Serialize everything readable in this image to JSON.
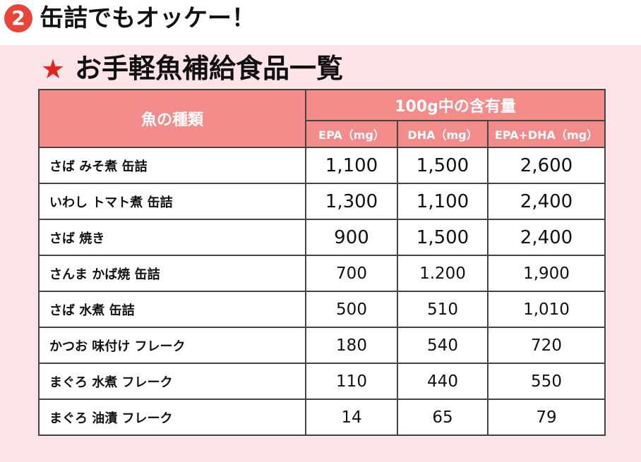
{
  "header": {
    "badge": "2",
    "title": "缶詰でもオッケー！"
  },
  "panel": {
    "star": "★",
    "title": "お手軽魚補給食品一覧"
  },
  "table": {
    "fish_header": "魚の種類",
    "group_header": "100g中の含有量",
    "sub_headers": [
      "EPA（mg）",
      "DHA（mg）",
      "EPA+DHA（mg）"
    ],
    "rows": [
      {
        "name": "さば みそ煮 缶詰",
        "epa": "1,100",
        "dha": "1,500",
        "total": "2,600"
      },
      {
        "name": "いわし トマト煮 缶詰",
        "epa": "1,300",
        "dha": "1,100",
        "total": "2,400"
      },
      {
        "name": "さば 焼き",
        "epa": "900",
        "dha": "1,500",
        "total": "2,400"
      },
      {
        "name": "さんま かば焼 缶詰",
        "epa": "700",
        "dha": "1.200",
        "total": "1,900"
      },
      {
        "name": "さば 水煮 缶詰",
        "epa": "500",
        "dha": "510",
        "total": "1,010"
      },
      {
        "name": "かつお 味付け フレーク",
        "epa": "180",
        "dha": "540",
        "total": "720"
      },
      {
        "name": "まぐろ 水煮 フレーク",
        "epa": "110",
        "dha": "440",
        "total": "550"
      },
      {
        "name": "まぐろ 油漬 フレーク",
        "epa": "14",
        "dha": "65",
        "total": "79"
      }
    ]
  }
}
